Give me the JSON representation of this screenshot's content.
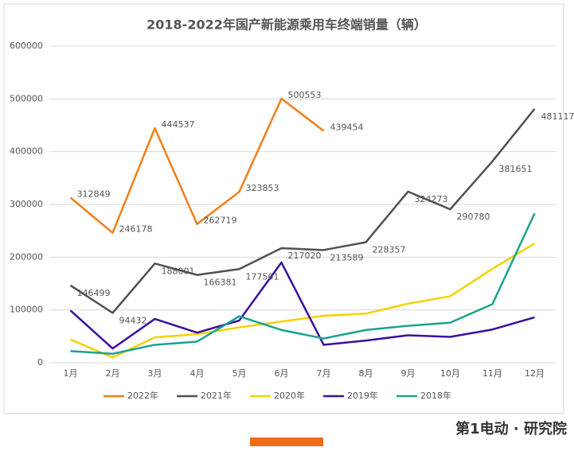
{
  "chart_data": {
    "type": "line",
    "title": "2018-2022年国产新能源乘用车终端销量（辆）",
    "categories": [
      "1月",
      "2月",
      "3月",
      "4月",
      "5月",
      "6月",
      "7月",
      "8月",
      "9月",
      "10月",
      "11月",
      "12月"
    ],
    "ylim": [
      0,
      600000
    ],
    "yticks": [
      0,
      100000,
      200000,
      300000,
      400000,
      500000,
      600000
    ],
    "grid": true,
    "legend": "bottom",
    "series": [
      {
        "name": "2022年",
        "color": "#f07f1a",
        "data_labels": true,
        "values": [
          312849,
          246178,
          444537,
          262719,
          323853,
          500553,
          439454,
          null,
          null,
          null,
          null,
          null
        ]
      },
      {
        "name": "2021年",
        "color": "#505050",
        "data_labels": true,
        "values": [
          146499,
          94432,
          188001,
          166381,
          177501,
          217020,
          213589,
          228357,
          324273,
          290780,
          381651,
          481117
        ]
      },
      {
        "name": "2020年",
        "color": "#f5d100",
        "data_labels": false,
        "values": [
          44000,
          10000,
          48000,
          54000,
          67000,
          78000,
          89000,
          93000,
          112000,
          126000,
          178000,
          226000
        ]
      },
      {
        "name": "2019年",
        "color": "#3c0f9e",
        "data_labels": false,
        "values": [
          99000,
          27000,
          83000,
          57000,
          80000,
          190000,
          34000,
          42000,
          52000,
          49000,
          63000,
          86000
        ]
      },
      {
        "name": "2018年",
        "color": "#1aa38f",
        "data_labels": false,
        "values": [
          22000,
          17000,
          34000,
          40000,
          88000,
          62000,
          46000,
          62000,
          70000,
          76000,
          111000,
          283000
        ]
      }
    ]
  },
  "footer": {
    "brand": "第1电动 · 研究院"
  }
}
